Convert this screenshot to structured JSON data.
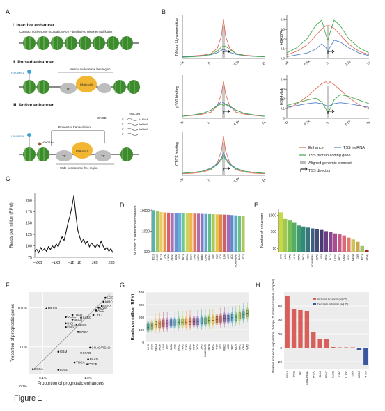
{
  "figure_label": "Figure 1",
  "panels": {
    "A": "A",
    "B": "B",
    "C": "C",
    "D": "D",
    "E": "E",
    "F": "F",
    "G": "G",
    "H": "H"
  },
  "panelA": {
    "inactive_title": "I. Inactive enhancer",
    "inactive_sub": "Compact nucleosome occupation/No TF binding/No Histone modification",
    "poised_title": "II. Poised enhancer",
    "poised_h3": "H3K4ME1",
    "poised_nfr": "Narrow nucleosome free region",
    "active_title": "III. Active enhancer",
    "active_h3k4": "H3K4ME1",
    "active_h3k27": "H3K27Ac",
    "enh_transcription": "Enhancer transcription",
    "wide_nfr": "Wide nucleosome free region",
    "cage": "CAGE",
    "rnaseq": "RNA-seq",
    "tf": "TF",
    "pol": "RNA pol II",
    "reads": [
      "5'",
      "5'",
      "5'",
      "5'"
    ],
    "polya": [
      "AAAAAA",
      "AAAAAA",
      "AAAAAA"
    ]
  },
  "colors": {
    "enhancer": "#e06a57",
    "tss_lncrna": "#4f7fc4",
    "tss_pc": "#4aa84c",
    "aligned": "#bbbbbb",
    "nucleosome": "#3d8a2f",
    "pol": "#f2b632",
    "tf": "#bdbdbd",
    "mark": "#39a4d8"
  },
  "panelB_labels": {
    "ticks_left": [
      "-1k",
      "0",
      "0.5k",
      "1k"
    ],
    "ticks_right": [
      "-1k",
      "-0.5k",
      "0",
      "0.5k",
      "1k"
    ],
    "legend": {
      "enhancer": "Enhancer",
      "tss_lncrna": "TSS lncRNA",
      "tss_pc": "TSS protein coding gene",
      "aligned": "Aligned genomic element",
      "tss_dir": "TSS direction"
    }
  },
  "chart_data": [
    {
      "id": "B1",
      "type": "line",
      "title": "",
      "xlabel": "",
      "ylabel": "DNase Hypersensitive",
      "x": [
        -1000,
        -750,
        -500,
        -300,
        -150,
        -50,
        0,
        50,
        150,
        300,
        500,
        750,
        1000
      ],
      "series": [
        {
          "name": "Enhancer",
          "values": [
            0.05,
            0.06,
            0.08,
            0.12,
            0.25,
            0.55,
            0.95,
            0.55,
            0.25,
            0.12,
            0.08,
            0.06,
            0.05
          ]
        },
        {
          "name": "TSS lncRNA",
          "values": [
            0.04,
            0.05,
            0.07,
            0.09,
            0.14,
            0.2,
            0.22,
            0.2,
            0.15,
            0.1,
            0.07,
            0.05,
            0.04
          ]
        },
        {
          "name": "TSS protein coding gene",
          "values": [
            0.03,
            0.04,
            0.06,
            0.1,
            0.18,
            0.28,
            0.3,
            0.3,
            0.22,
            0.12,
            0.07,
            0.05,
            0.04
          ]
        }
      ]
    },
    {
      "id": "B2",
      "type": "line",
      "title": "",
      "xlabel": "",
      "ylabel": "H3K27Ac",
      "yticks": [
        "0.0",
        "0.1",
        "0.2",
        "0.3",
        "0.4"
      ],
      "ylim": [
        0,
        0.45
      ],
      "x": [
        -1000,
        -750,
        -500,
        -300,
        -150,
        -50,
        0,
        50,
        150,
        300,
        500,
        750,
        1000
      ],
      "series": [
        {
          "name": "Enhancer",
          "values": [
            0.04,
            0.08,
            0.15,
            0.25,
            0.32,
            0.36,
            0.36,
            0.36,
            0.33,
            0.26,
            0.16,
            0.08,
            0.04
          ]
        },
        {
          "name": "TSS lncRNA",
          "values": [
            0.02,
            0.04,
            0.06,
            0.1,
            0.16,
            0.12,
            0.08,
            0.12,
            0.2,
            0.18,
            0.12,
            0.06,
            0.03
          ]
        },
        {
          "name": "TSS protein coding gene",
          "values": [
            0.06,
            0.12,
            0.22,
            0.36,
            0.42,
            0.26,
            0.2,
            0.28,
            0.42,
            0.36,
            0.22,
            0.12,
            0.06
          ]
        }
      ]
    },
    {
      "id": "B3",
      "type": "line",
      "title": "",
      "xlabel": "",
      "ylabel": "p300 binding",
      "x": [
        -1000,
        -750,
        -500,
        -300,
        -150,
        -50,
        0,
        50,
        150,
        300,
        500,
        750,
        1000
      ],
      "series": [
        {
          "name": "Enhancer",
          "values": [
            0.05,
            0.07,
            0.1,
            0.15,
            0.3,
            0.6,
            0.9,
            0.6,
            0.3,
            0.15,
            0.1,
            0.07,
            0.05
          ]
        },
        {
          "name": "TSS lncRNA",
          "values": [
            0.05,
            0.08,
            0.12,
            0.2,
            0.32,
            0.4,
            0.38,
            0.34,
            0.28,
            0.2,
            0.12,
            0.08,
            0.05
          ]
        },
        {
          "name": "TSS protein coding gene",
          "values": [
            0.05,
            0.08,
            0.12,
            0.2,
            0.3,
            0.35,
            0.3,
            0.35,
            0.3,
            0.2,
            0.12,
            0.08,
            0.05
          ]
        }
      ]
    },
    {
      "id": "B4",
      "type": "line",
      "title": "",
      "xlabel": "",
      "ylabel": "H3K4Me1",
      "yticks": [
        "0",
        "0.1",
        "0.2",
        "0.3",
        "0.4"
      ],
      "ylim": [
        0,
        0.45
      ],
      "x": [
        -1000,
        -750,
        -500,
        -300,
        -150,
        -50,
        0,
        50,
        150,
        300,
        500,
        750,
        1000
      ],
      "series": [
        {
          "name": "Enhancer",
          "values": [
            0.1,
            0.16,
            0.24,
            0.32,
            0.38,
            0.4,
            0.38,
            0.4,
            0.37,
            0.31,
            0.23,
            0.15,
            0.1
          ]
        },
        {
          "name": "TSS lncRNA",
          "values": [
            0.12,
            0.14,
            0.16,
            0.17,
            0.16,
            0.14,
            0.13,
            0.14,
            0.16,
            0.17,
            0.16,
            0.14,
            0.12
          ]
        },
        {
          "name": "TSS protein coding gene",
          "values": [
            0.14,
            0.17,
            0.2,
            0.22,
            0.18,
            0.1,
            0.06,
            0.1,
            0.2,
            0.26,
            0.24,
            0.2,
            0.16
          ]
        }
      ]
    },
    {
      "id": "B5",
      "type": "line",
      "title": "",
      "xlabel": "",
      "ylabel": "CTCF binding",
      "x": [
        -1000,
        -750,
        -500,
        -300,
        -150,
        -50,
        0,
        50,
        150,
        300,
        500,
        750,
        1000
      ],
      "series": [
        {
          "name": "Enhancer",
          "values": [
            0.04,
            0.05,
            0.08,
            0.14,
            0.3,
            0.6,
            0.95,
            0.6,
            0.3,
            0.14,
            0.08,
            0.05,
            0.04
          ]
        },
        {
          "name": "TSS lncRNA",
          "values": [
            0.05,
            0.07,
            0.1,
            0.18,
            0.28,
            0.42,
            0.55,
            0.42,
            0.28,
            0.18,
            0.1,
            0.07,
            0.05
          ]
        },
        {
          "name": "TSS protein coding gene",
          "values": [
            0.05,
            0.07,
            0.1,
            0.16,
            0.26,
            0.38,
            0.48,
            0.38,
            0.26,
            0.16,
            0.1,
            0.07,
            0.05
          ]
        }
      ]
    },
    {
      "id": "C",
      "type": "line",
      "title": "",
      "xlabel": "",
      "ylabel": "Reads per million (RPM)",
      "xticks": [
        "−2kb",
        "−1kb",
        "−1b",
        "1b",
        "1kb",
        "2kb"
      ],
      "yticks": [
        75,
        100,
        125,
        150,
        175,
        200
      ],
      "ylim": [
        75,
        215
      ],
      "x": [
        -2000,
        -1900,
        -1800,
        -1700,
        -1600,
        -1500,
        -1400,
        -1300,
        -1200,
        -1100,
        -1000,
        -900,
        -800,
        -700,
        -600,
        -500,
        -400,
        -300,
        -200,
        -100,
        0,
        100,
        200,
        300,
        400,
        500,
        600,
        700,
        800,
        900,
        1000,
        1100,
        1200,
        1300,
        1400,
        1500,
        1600,
        1700,
        1800,
        1900,
        2000
      ],
      "values": [
        88,
        92,
        85,
        96,
        90,
        94,
        88,
        98,
        92,
        100,
        95,
        104,
        98,
        110,
        120,
        112,
        130,
        150,
        165,
        185,
        210,
        170,
        135,
        120,
        108,
        115,
        104,
        110,
        98,
        106,
        102,
        96,
        104,
        98,
        110,
        100,
        92,
        97,
        88,
        94,
        85
      ]
    },
    {
      "id": "D",
      "type": "bar",
      "title": "",
      "xlabel": "",
      "ylabel": "Number of detected enhancers",
      "yscale": "log",
      "yticks": [
        "100",
        "1000",
        "10000"
      ],
      "categories": [
        "ESCA",
        "SKCM",
        "BLCA",
        "LIHC",
        "HNSC",
        "CESC",
        "LUAD",
        "KIRP",
        "THCA",
        "BRCA",
        "LUSC",
        "STAD",
        "UCEC",
        "PRAD",
        "COAD",
        "READ",
        "KIRC",
        "GBM",
        "KICH",
        "LGG",
        "UVM",
        "ACC",
        "COADREAD",
        "DLBC",
        "UCS"
      ],
      "values": [
        10500,
        9400,
        8600,
        8200,
        8000,
        7800,
        7700,
        7600,
        7500,
        7400,
        7300,
        7200,
        7100,
        7000,
        6900,
        6800,
        6700,
        6600,
        6500,
        6400,
        6300,
        6100,
        5900,
        5700,
        5500
      ]
    },
    {
      "id": "E",
      "type": "bar",
      "title": "",
      "xlabel": "",
      "ylabel": "Number of enhancers",
      "yscale": "log",
      "yticks": [
        "10",
        "100",
        "1000"
      ],
      "categories": [
        "KIRC",
        "LGG",
        "STAD",
        "LIHC",
        "PRAD",
        "THCA",
        "ACC",
        "COADREAD",
        "LUAD",
        "KIRP",
        "CESC",
        "BLCA",
        "UCEC",
        "BRCA",
        "HNSC",
        "LUSC",
        "MESO",
        "GBM",
        "ESCA",
        "CHOL"
      ],
      "values": [
        1500,
        600,
        480,
        380,
        240,
        210,
        180,
        160,
        150,
        130,
        110,
        95,
        80,
        70,
        60,
        45,
        35,
        25,
        14,
        8
      ]
    },
    {
      "id": "F",
      "type": "scatter",
      "title": "",
      "xlabel": "Proportion of prognostic enhancers",
      "ylabel": "Proportion of prognostic genes",
      "xscale": "log",
      "yscale": "log",
      "xticks": [
        "0.1%",
        "1.0%"
      ],
      "yticks": [
        "0.1%",
        "1.0%",
        "10.0%"
      ],
      "points": [
        {
          "label": "LGG",
          "x": 2.4,
          "y": 18
        },
        {
          "label": "KIRC",
          "x": 2.2,
          "y": 14
        },
        {
          "label": "KIRP",
          "x": 2.0,
          "y": 11
        },
        {
          "label": "UVM",
          "x": 1.7,
          "y": 10
        },
        {
          "label": "ACC",
          "x": 1.5,
          "y": 8.5
        },
        {
          "label": "MESO",
          "x": 0.12,
          "y": 9.5
        },
        {
          "label": "LIHC",
          "x": 1.3,
          "y": 6.5
        },
        {
          "label": "LUAD",
          "x": 0.45,
          "y": 6.5
        },
        {
          "label": "SARC",
          "x": 0.7,
          "y": 5.6
        },
        {
          "label": "UCEC",
          "x": 0.32,
          "y": 5.8
        },
        {
          "label": "BLCA",
          "x": 0.45,
          "y": 5.0
        },
        {
          "label": "KICH",
          "x": 0.32,
          "y": 4.0
        },
        {
          "label": "CESC",
          "x": 0.55,
          "y": 3.6
        },
        {
          "label": "HNSC",
          "x": 0.32,
          "y": 3.2
        },
        {
          "label": "BRCA",
          "x": 0.6,
          "y": 2.4
        },
        {
          "label": "GBM",
          "x": 0.22,
          "y": 0.75
        },
        {
          "label": "COAD/READ",
          "x": 1.1,
          "y": 0.95
        },
        {
          "label": "STAD",
          "x": 0.7,
          "y": 0.7
        },
        {
          "label": "PAAD",
          "x": 1.0,
          "y": 0.48
        },
        {
          "label": "THCA",
          "x": 0.5,
          "y": 0.4
        },
        {
          "label": "PRAD",
          "x": 0.95,
          "y": 0.36
        },
        {
          "label": "LUSC",
          "x": 0.22,
          "y": 0.26
        },
        {
          "label": "ESCA",
          "x": 0.06,
          "y": 0.27
        }
      ]
    },
    {
      "id": "G",
      "type": "box",
      "title": "",
      "xlabel": "",
      "ylabel": "Reads per million (RPM)",
      "yticks": [
        0,
        100,
        200,
        300,
        400
      ],
      "ylim": [
        0,
        400
      ],
      "categories": [
        "LIHC",
        "ESCA",
        "MESO",
        "SKCM",
        "UVM",
        "LUSC",
        "BLCA",
        "UCS",
        "HNSC",
        "PRAD",
        "STAD",
        "CESC",
        "KIRP",
        "THCA",
        "LUAD",
        "COADREAD",
        "BRCA",
        "KIRC",
        "TGCT",
        "LGG",
        "UCEC",
        "ACC",
        "DLBC",
        "KICH",
        "SARC",
        "GBM",
        "PAAD"
      ],
      "medians": [
        120,
        130,
        140,
        145,
        150,
        150,
        155,
        155,
        160,
        160,
        160,
        165,
        165,
        165,
        170,
        170,
        175,
        175,
        180,
        185,
        190,
        190,
        195,
        200,
        210,
        220,
        230
      ]
    },
    {
      "id": "H",
      "type": "bar",
      "title": "",
      "xlabel": "",
      "ylabel": "Relative enhancer expression change (Tumors vs normal samples)",
      "yticks": [
        "-20",
        "0",
        "20",
        "40",
        "60"
      ],
      "ylim": [
        -30,
        80
      ],
      "legend": [
        "Increase in tumors (adj.05)",
        "Decrease in tumors (adj.05)"
      ],
      "categories": [
        "ESCA",
        "STAD",
        "LIHC",
        "COADREAD",
        "HNSC",
        "BLCA",
        "PRAD",
        "LUAD",
        "KIRC",
        "LUSC",
        "KIRP",
        "UCEC",
        "THCA"
      ],
      "values": [
        75,
        55,
        54,
        53,
        22,
        13,
        12,
        1,
        0.5,
        0.5,
        0.5,
        -3,
        -25
      ]
    }
  ]
}
